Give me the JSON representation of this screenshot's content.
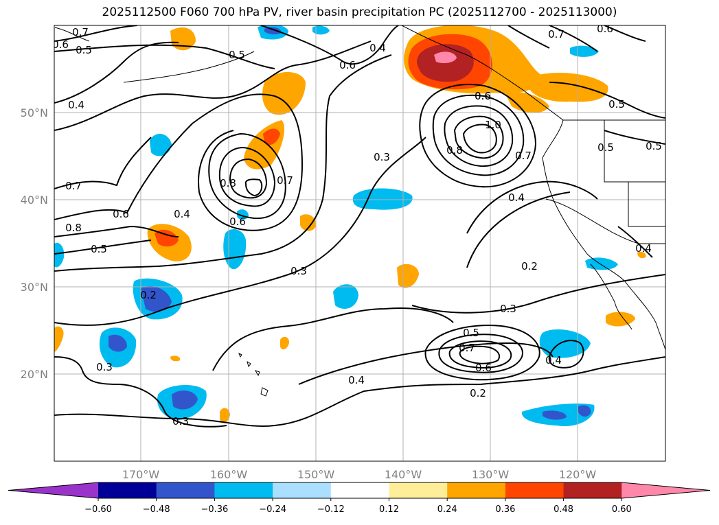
{
  "title": "2025112500 F060 700 hPa PV, river basin precipitation PC (2025112700 - 2025113000)",
  "lat_labels": [
    "20°N",
    "30°N",
    "40°N",
    "50°N"
  ],
  "lon_labels": [
    "170°W",
    "160°W",
    "150°W",
    "140°W",
    "130°W",
    "120°W"
  ],
  "colorbar": {
    "ticks": [
      "−0.60",
      "−0.48",
      "−0.36",
      "−0.24",
      "−0.12",
      "0.12",
      "0.24",
      "0.36",
      "0.48",
      "0.60"
    ],
    "colors": [
      "#9933cc",
      "#000099",
      "#3355cc",
      "#00bbf0",
      "#aadfff",
      "#ffffff",
      "#ffee99",
      "#ffa500",
      "#ff4500",
      "#b22222",
      "#ff88aa"
    ]
  },
  "contour_labels": [
    "0.7",
    "0.6",
    "0.5",
    "0.5",
    "0.6",
    "0.4",
    "0.6",
    "0.7",
    "0.6",
    "0.5",
    "0.4",
    "0.7",
    "0.6",
    "0.8",
    "0.5",
    "0.4",
    "0.8",
    "0.6",
    "0.7",
    "0.3",
    "1.0",
    "0.8",
    "0.6",
    "0.7",
    "0.5",
    "0.5",
    "0.4",
    "0.3",
    "0.2",
    "0.2",
    "0.3",
    "0.4",
    "0.5",
    "0.7",
    "0.6",
    "0.4",
    "0.2",
    "0.4",
    "0.3",
    "0.3"
  ],
  "colors": {
    "orange": "#ffa500",
    "red": "#ff4500",
    "darkred": "#b22222",
    "pink": "#ff88aa",
    "cyan": "#00bbf0",
    "blue": "#3355cc",
    "grid": "#b0b0b0"
  }
}
